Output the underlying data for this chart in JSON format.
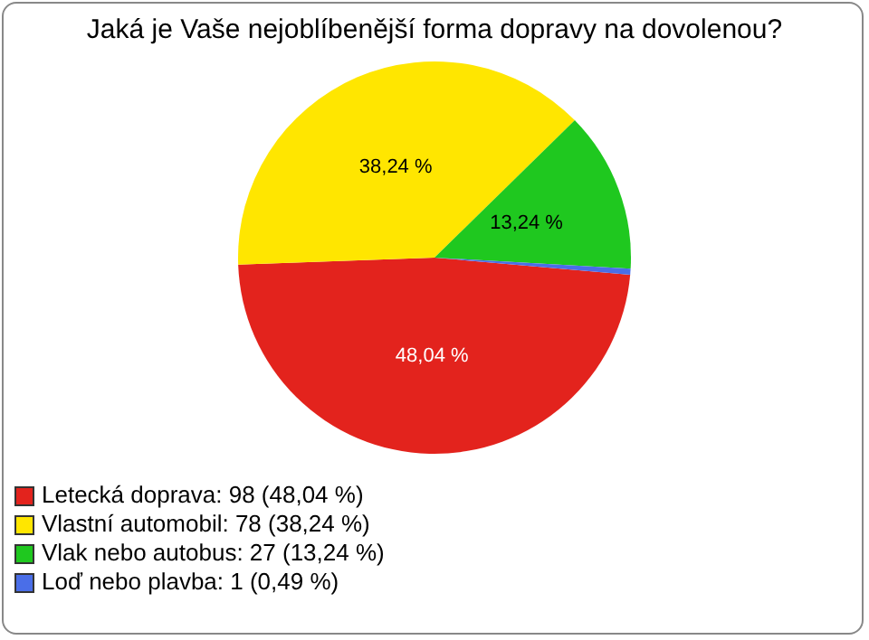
{
  "chart_data": {
    "type": "pie",
    "title": "Jaká je Vaše nejoblíbenější forma dopravy na dovolenou?",
    "categories": [
      "Letecká doprava: 98 (48,04 %)",
      "Vlastní automobil: 78 (38,24 %)",
      "Vlak nebo autobus: 27 (13,24 %)",
      "Loď nebo plavba: 1 (0,49 %)"
    ],
    "values": [
      48.04,
      38.24,
      13.24,
      0.49
    ],
    "colors": [
      "#e3231d",
      "#ffe600",
      "#1fc81f",
      "#4a6ee8"
    ],
    "value_labels": [
      "48,04 %",
      "38,24 %",
      "13,24 %",
      null
    ],
    "legend": "bottom left"
  }
}
